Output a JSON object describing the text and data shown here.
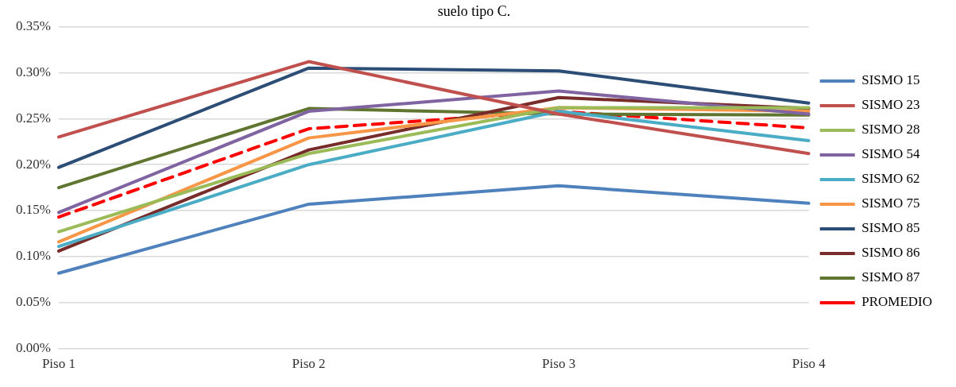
{
  "chart_data": {
    "type": "line",
    "title": "suelo tipo C.",
    "categories": [
      "Piso 1",
      "Piso 2",
      "Piso 3",
      "Piso 4"
    ],
    "ylim": [
      0,
      0.35
    ],
    "yticks": [
      {
        "value": 0,
        "label": "0.00%"
      },
      {
        "value": 0.05,
        "label": "0.05%"
      },
      {
        "value": 0.1,
        "label": "0.10%"
      },
      {
        "value": 0.15,
        "label": "0.15%"
      },
      {
        "value": 0.2,
        "label": "0.20%"
      },
      {
        "value": 0.25,
        "label": "0.25%"
      },
      {
        "value": 0.3,
        "label": "0.30%"
      },
      {
        "value": 0.35,
        "label": "0.35%"
      }
    ],
    "grid": "y",
    "legend": "right",
    "marker": "none",
    "line_style": "solid",
    "series": [
      {
        "name": "SISMO 15",
        "color": "#4f81bd",
        "values": [
          0.082,
          0.157,
          0.177,
          0.158
        ]
      },
      {
        "name": "SISMO 23",
        "color": "#c0504d",
        "values": [
          0.23,
          0.312,
          0.255,
          0.212
        ]
      },
      {
        "name": "SISMO 28",
        "color": "#9bbb59",
        "values": [
          0.127,
          0.212,
          0.262,
          0.262
        ]
      },
      {
        "name": "SISMO 54",
        "color": "#8064a2",
        "values": [
          0.148,
          0.258,
          0.28,
          0.255
        ]
      },
      {
        "name": "SISMO 62",
        "color": "#4bacc6",
        "values": [
          0.111,
          0.2,
          0.258,
          0.226
        ]
      },
      {
        "name": "SISMO 75",
        "color": "#f79646",
        "values": [
          0.116,
          0.229,
          0.262,
          0.258
        ]
      },
      {
        "name": "SISMO 85",
        "color": "#2c4d75",
        "values": [
          0.197,
          0.305,
          0.302,
          0.267
        ]
      },
      {
        "name": "SISMO 86",
        "color": "#772c2a",
        "values": [
          0.106,
          0.216,
          0.273,
          0.261
        ]
      },
      {
        "name": "SISMO 87",
        "color": "#5f7530",
        "values": [
          0.175,
          0.261,
          0.255,
          0.254
        ]
      },
      {
        "name": "PROMEDIO",
        "color": "#ff0000",
        "line_style": "dashed",
        "values": [
          0.143,
          0.239,
          0.258,
          0.24
        ]
      }
    ]
  }
}
